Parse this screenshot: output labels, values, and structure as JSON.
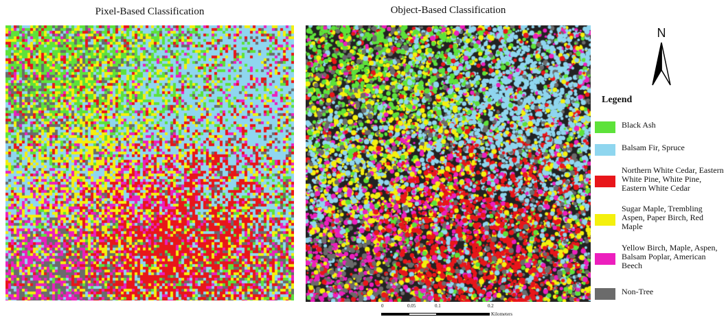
{
  "titles": {
    "pixel": "Pixel-Based Classification",
    "object": "Object-Based Classification"
  },
  "north_arrow": {
    "label": "N"
  },
  "legend": {
    "title": "Legend",
    "items": [
      {
        "label": "Black Ash",
        "color": "#5de23a"
      },
      {
        "label": "Balsam Fir, Spruce",
        "color": "#8fd6ef"
      },
      {
        "label": "Northern White Cedar, Eastern White Pine, White Pine, Eastern White Cedar",
        "color": "#e8161a"
      },
      {
        "label": "Sugar Maple, Trembling Aspen, Paper Birch, Red Maple",
        "color": "#f4f00d"
      },
      {
        "label": "Yellow Birch, Maple, Aspen, Balsam Poplar, American Beech",
        "color": "#ec1fbd"
      },
      {
        "label": "Non-Tree",
        "color": "#6b6b6b"
      }
    ]
  },
  "scale_bar": {
    "ticks": [
      "0",
      "0.05",
      "0.1",
      "0.2"
    ],
    "unit": "Kilometers"
  },
  "colors": {
    "object_background": "#222222"
  }
}
